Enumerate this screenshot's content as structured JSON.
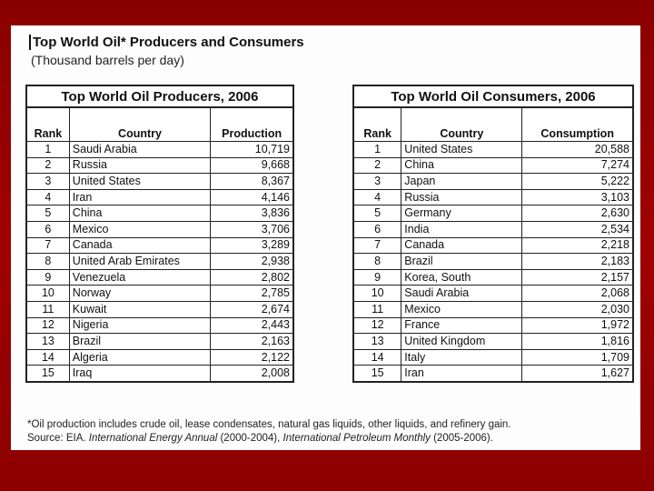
{
  "header": {
    "title": "Top World Oil* Producers and Consumers",
    "subtitle": "(Thousand barrels per day)"
  },
  "tables": [
    {
      "title": "Top World Oil Producers, 2006",
      "columns": [
        "Rank",
        "Country",
        "Production"
      ],
      "rows": [
        [
          "1",
          "Saudi Arabia",
          "10,719"
        ],
        [
          "2",
          "Russia",
          "9,668"
        ],
        [
          "3",
          "United States",
          "8,367"
        ],
        [
          "4",
          "Iran",
          "4,146"
        ],
        [
          "5",
          "China",
          "3,836"
        ],
        [
          "6",
          "Mexico",
          "3,706"
        ],
        [
          "7",
          "Canada",
          "3,289"
        ],
        [
          "8",
          "United Arab Emirates",
          "2,938"
        ],
        [
          "9",
          "Venezuela",
          "2,802"
        ],
        [
          "10",
          "Norway",
          "2,785"
        ],
        [
          "11",
          "Kuwait",
          "2,674"
        ],
        [
          "12",
          "Nigeria",
          "2,443"
        ],
        [
          "13",
          "Brazil",
          "2,163"
        ],
        [
          "14",
          "Algeria",
          "2,122"
        ],
        [
          "15",
          "Iraq",
          "2,008"
        ]
      ]
    },
    {
      "title": "Top World Oil Consumers, 2006",
      "columns": [
        "Rank",
        "Country",
        "Consumption"
      ],
      "rows": [
        [
          "1",
          "United States",
          "20,588"
        ],
        [
          "2",
          "China",
          "7,274"
        ],
        [
          "3",
          "Japan",
          "5,222"
        ],
        [
          "4",
          "Russia",
          "3,103"
        ],
        [
          "5",
          "Germany",
          "2,630"
        ],
        [
          "6",
          "India",
          "2,534"
        ],
        [
          "7",
          "Canada",
          "2,218"
        ],
        [
          "8",
          "Brazil",
          "2,183"
        ],
        [
          "9",
          "Korea, South",
          "2,157"
        ],
        [
          "10",
          "Saudi Arabia",
          "2,068"
        ],
        [
          "11",
          "Mexico",
          "2,030"
        ],
        [
          "12",
          "France",
          "1,972"
        ],
        [
          "13",
          "United Kingdom",
          "1,816"
        ],
        [
          "14",
          "Italy",
          "1,709"
        ],
        [
          "15",
          "Iran",
          "1,627"
        ]
      ]
    }
  ],
  "footnote": {
    "note": "*Oil production includes crude oil, lease condensates, natural gas liquids, other liquids, and refinery gain.",
    "source": [
      {
        "text": "Source: EIA. ",
        "italic": false
      },
      {
        "text": "International Energy Annual",
        "italic": true
      },
      {
        "text": " (2000-2004), ",
        "italic": false
      },
      {
        "text": "International Petroleum Monthly",
        "italic": true
      },
      {
        "text": " (2005-2006).",
        "italic": false
      }
    ]
  }
}
